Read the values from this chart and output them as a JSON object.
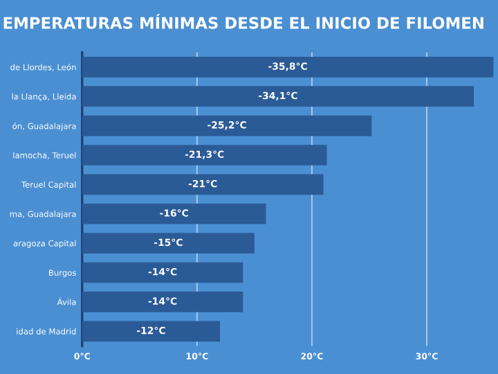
{
  "chart_data": {
    "type": "bar",
    "orientation": "horizontal",
    "title": "EMPERATURAS MÍNIMAS DESDE EL INICIO DE FILOMEN",
    "categories": [
      "de Llordes, León",
      "la Llança, Lleida",
      "ón, Guadalajara",
      "lamocha, Teruel",
      "Teruel Capital",
      "ma, Guadalajara",
      "aragoza Capital",
      "Burgos",
      "Ávila",
      "idad de Madrid"
    ],
    "values": [
      -35.8,
      -34.1,
      -25.2,
      -21.3,
      -21,
      -16,
      -15,
      -14,
      -14,
      -12
    ],
    "value_labels": [
      "-35,8°C",
      "-34,1°C",
      "-25,2°C",
      "-21,3°C",
      "-21°C",
      "-16°C",
      "-15°C",
      "-14°C",
      "-14°C",
      "-12°C"
    ],
    "color": "#2b5b96",
    "xlim": [
      0,
      -36.2
    ],
    "xticks": [
      {
        "value": 0,
        "label": "0°C"
      },
      {
        "value": -10,
        "label": "10°C"
      },
      {
        "value": -20,
        "label": "20°C"
      },
      {
        "value": -30,
        "label": "30°C"
      }
    ],
    "grid": "x"
  }
}
